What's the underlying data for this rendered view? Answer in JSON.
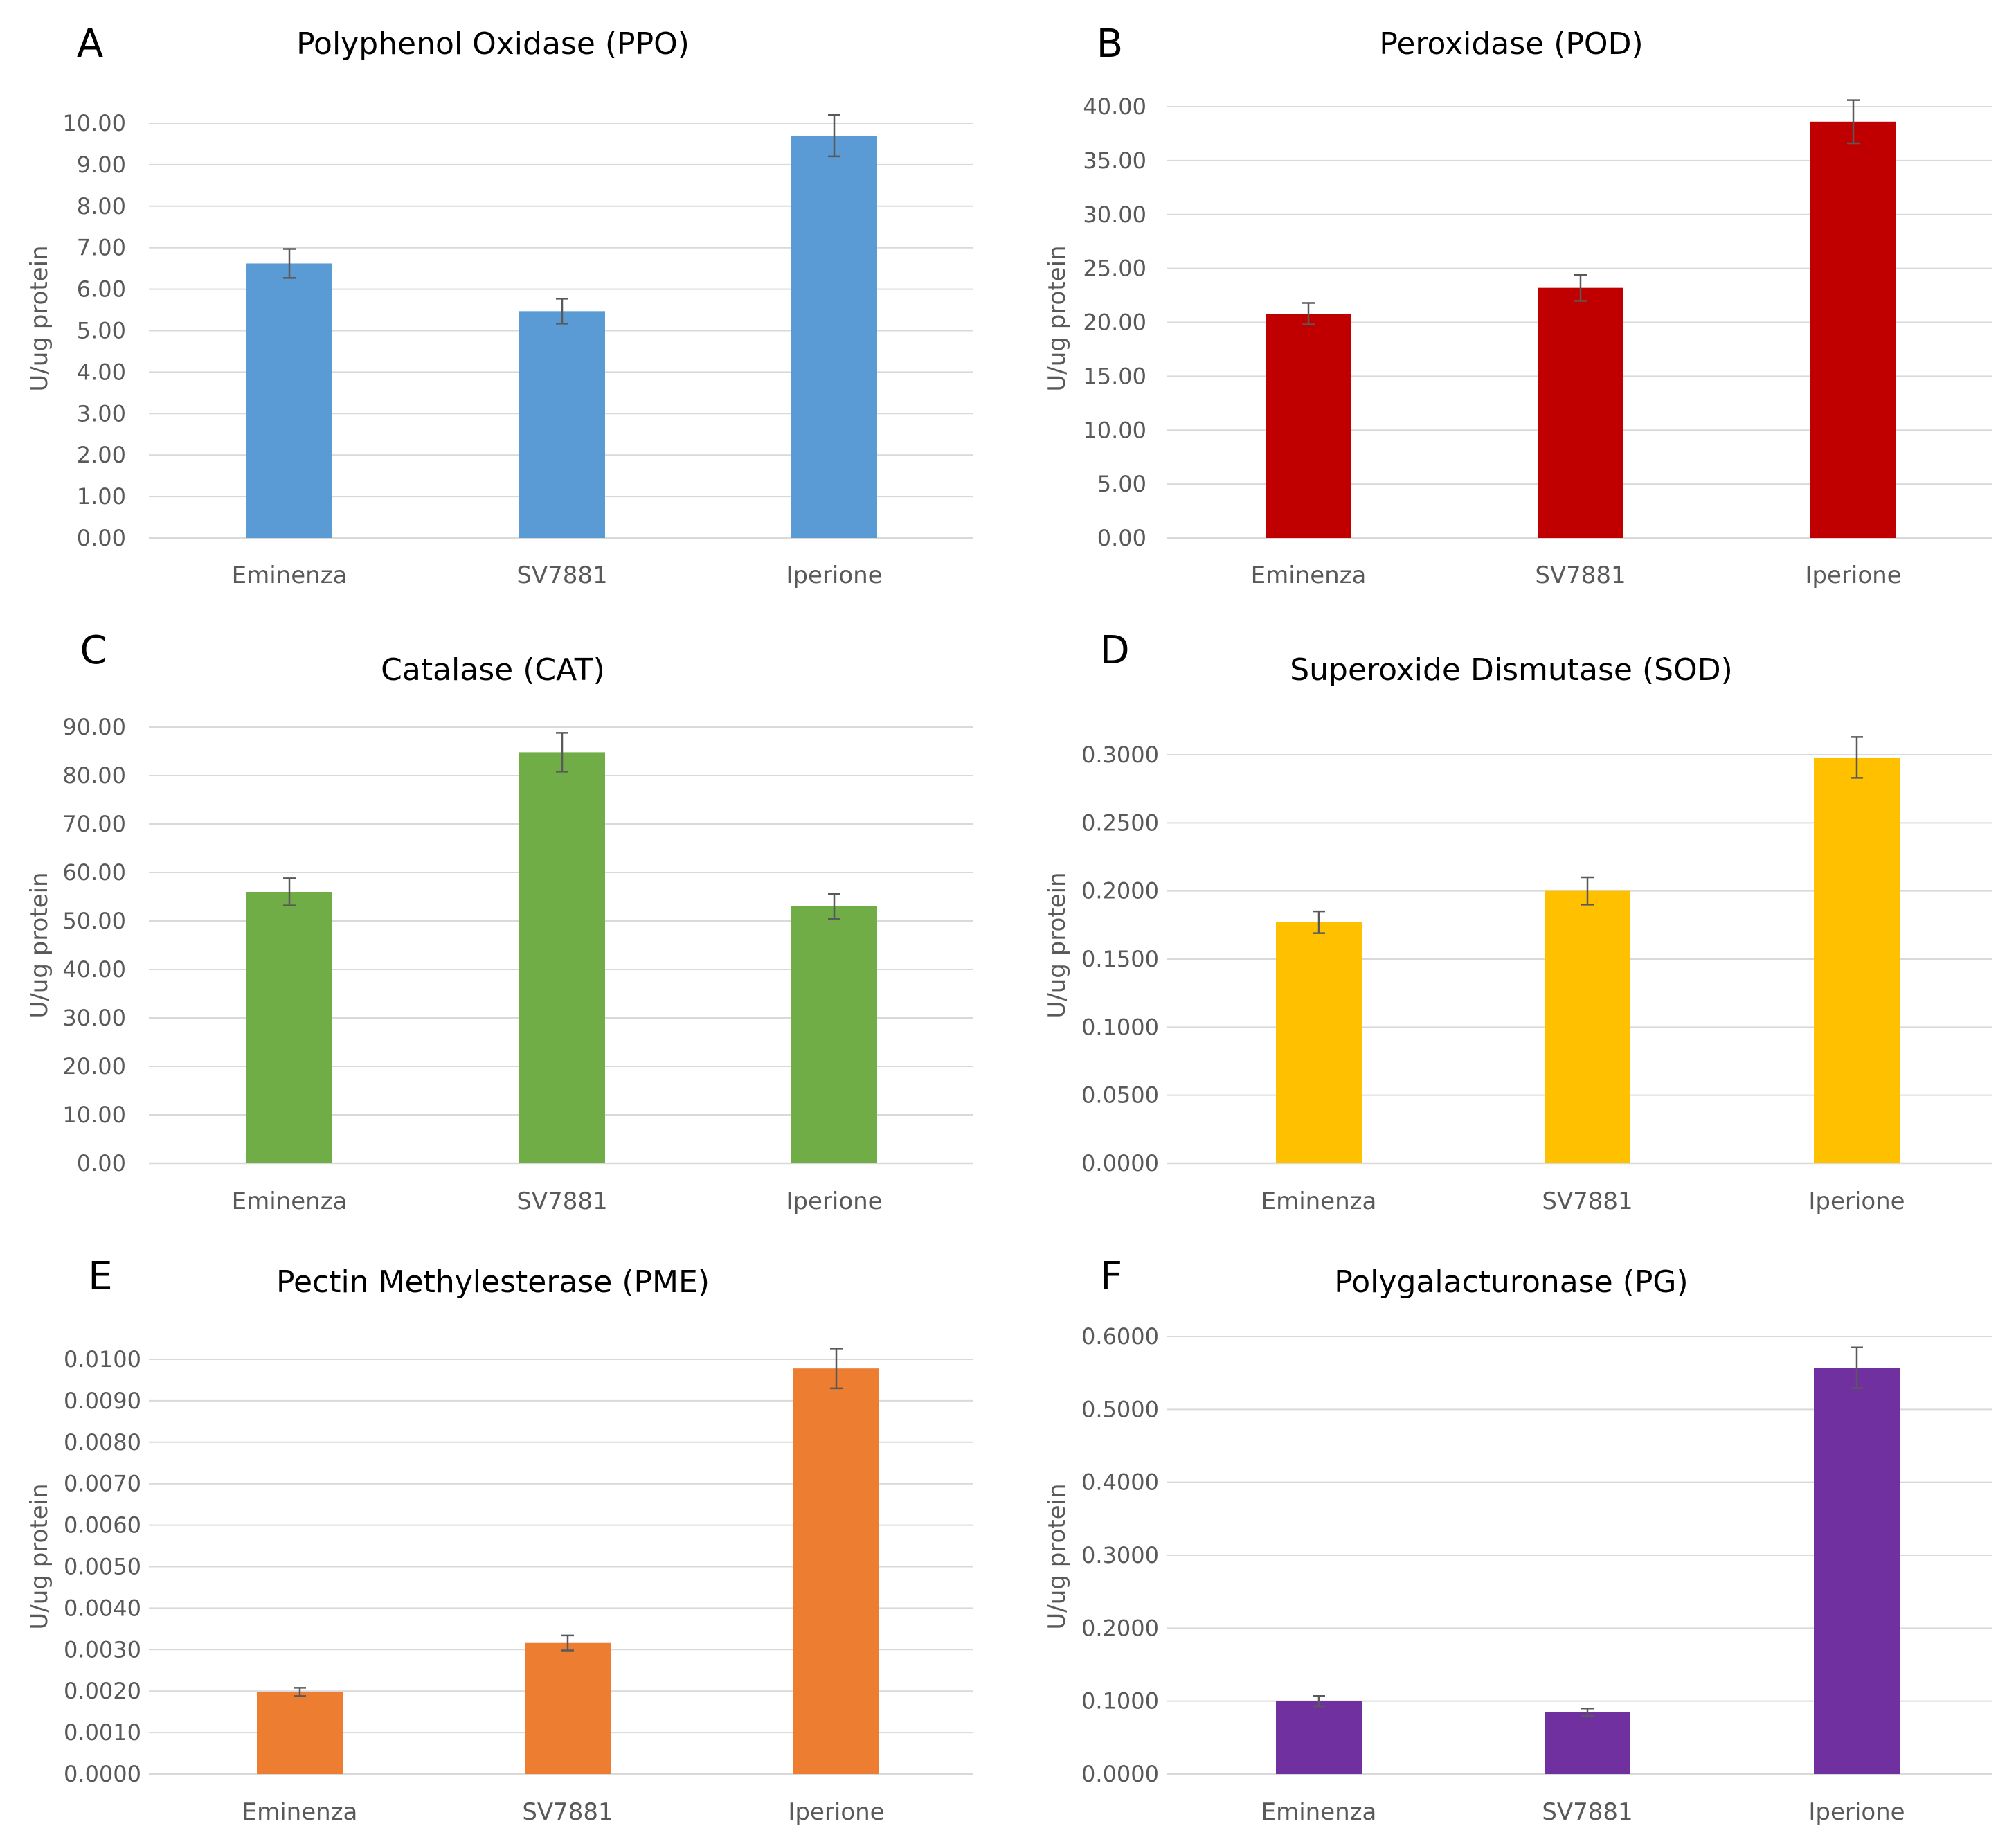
{
  "figure": {
    "description_free": true
  },
  "chart_data": [
    {
      "panel": "A",
      "type": "bar",
      "title": "Polyphenol Oxidase (PPO)",
      "ylabel": "U/ug protein",
      "xlabel": "",
      "categories": [
        "Eminenza",
        "SV7881",
        "Iperione"
      ],
      "values": [
        6.62,
        5.47,
        9.7
      ],
      "errors": [
        0.35,
        0.3,
        0.5
      ],
      "ylim": [
        0,
        10
      ],
      "yticks": [
        0,
        1,
        2,
        3,
        4,
        5,
        6,
        7,
        8,
        9,
        10
      ],
      "ytick_labels": [
        "0.00",
        "1.00",
        "2.00",
        "3.00",
        "4.00",
        "5.00",
        "6.00",
        "7.00",
        "8.00",
        "9.00",
        "10.00"
      ],
      "color": "#5B9BD5",
      "grid": true
    },
    {
      "panel": "B",
      "type": "bar",
      "title": "Peroxidase (POD)",
      "ylabel": "U/ug protein",
      "xlabel": "",
      "categories": [
        "Eminenza",
        "SV7881",
        "Iperione"
      ],
      "values": [
        20.8,
        23.2,
        38.6
      ],
      "errors": [
        1.0,
        1.2,
        2.0
      ],
      "ylim": [
        0,
        40
      ],
      "yticks": [
        0,
        5,
        10,
        15,
        20,
        25,
        30,
        35,
        40
      ],
      "ytick_labels": [
        "0.00",
        "5.00",
        "10.00",
        "15.00",
        "20.00",
        "25.00",
        "30.00",
        "35.00",
        "40.00"
      ],
      "color": "#C00000",
      "grid": true
    },
    {
      "panel": "C",
      "type": "bar",
      "title": "Catalase (CAT)",
      "ylabel": "U/ug protein",
      "xlabel": "",
      "categories": [
        "Eminenza",
        "SV7881",
        "Iperione"
      ],
      "values": [
        56.0,
        84.8,
        53.0
      ],
      "errors": [
        2.8,
        4.0,
        2.6
      ],
      "ylim": [
        0,
        90
      ],
      "yticks": [
        0,
        10,
        20,
        30,
        40,
        50,
        60,
        70,
        80,
        90
      ],
      "ytick_labels": [
        "0.00",
        "10.00",
        "20.00",
        "30.00",
        "40.00",
        "50.00",
        "60.00",
        "70.00",
        "80.00",
        "90.00"
      ],
      "color": "#70AD47",
      "grid": true
    },
    {
      "panel": "D",
      "type": "bar",
      "title": "Superoxide Dismutase (SOD)",
      "ylabel": "U/ug protein",
      "xlabel": "",
      "categories": [
        "Eminenza",
        "SV7881",
        "Iperione"
      ],
      "values": [
        0.177,
        0.2,
        0.298
      ],
      "errors": [
        0.008,
        0.01,
        0.015
      ],
      "ylim": [
        0,
        0.3
      ],
      "yticks": [
        0,
        0.05,
        0.1,
        0.15,
        0.2,
        0.25,
        0.3
      ],
      "ytick_labels": [
        "0.0000",
        "0.0500",
        "0.1000",
        "0.1500",
        "0.2000",
        "0.2500",
        "0.3000"
      ],
      "color": "#FFC000",
      "grid": true
    },
    {
      "panel": "E",
      "type": "bar",
      "title": "Pectin Methylesterase (PME)",
      "ylabel": "U/ug protein",
      "xlabel": "",
      "categories": [
        "Eminenza",
        "SV7881",
        "Iperione"
      ],
      "values": [
        0.00198,
        0.00316,
        0.00978
      ],
      "errors": [
        0.0001,
        0.00018,
        0.00048
      ],
      "ylim": [
        0,
        0.01
      ],
      "yticks": [
        0,
        0.001,
        0.002,
        0.003,
        0.004,
        0.005,
        0.006,
        0.007,
        0.008,
        0.009,
        0.01
      ],
      "ytick_labels": [
        "0.0000",
        "0.0010",
        "0.0020",
        "0.0030",
        "0.0040",
        "0.0050",
        "0.0060",
        "0.0070",
        "0.0080",
        "0.0090",
        "0.0100"
      ],
      "color": "#ED7D31",
      "grid": true
    },
    {
      "panel": "F",
      "type": "bar",
      "title": "Polygalacturonase (PG)",
      "ylabel": "U/ug protein",
      "xlabel": "",
      "categories": [
        "Eminenza",
        "SV7881",
        "Iperione"
      ],
      "values": [
        0.1,
        0.085,
        0.557
      ],
      "errors": [
        0.007,
        0.005,
        0.028
      ],
      "ylim": [
        0,
        0.6
      ],
      "yticks": [
        0,
        0.1,
        0.2,
        0.3,
        0.4,
        0.5,
        0.6
      ],
      "ytick_labels": [
        "0.0000",
        "0.1000",
        "0.2000",
        "0.3000",
        "0.4000",
        "0.5000",
        "0.6000"
      ],
      "color": "#7030A0",
      "grid": true
    }
  ]
}
